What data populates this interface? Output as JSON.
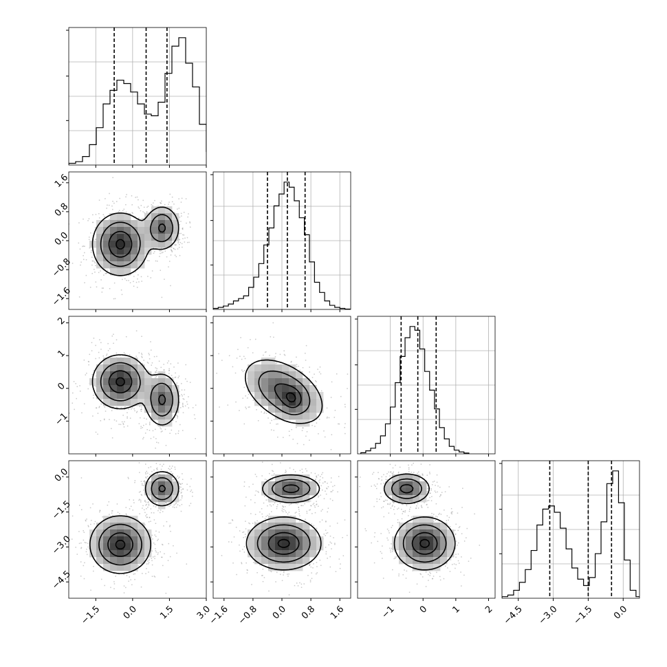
{
  "chart_data": {
    "type": "corner",
    "n_params": 4,
    "grid": true,
    "params": [
      {
        "range": [
          -2.6,
          3.0
        ],
        "ticks": [
          -1.5,
          0.0,
          1.5,
          3.0
        ],
        "tick_labels": [
          "−1.5",
          "0.0",
          "1.5",
          "3.0"
        ],
        "quantiles": [
          -0.75,
          0.55,
          1.4
        ],
        "histogram": {
          "bin_start": -2.6,
          "bin_width": 0.28,
          "counts": [
            0.5,
            1.0,
            2.5,
            6.0,
            11.0,
            18.0,
            22.0,
            25.0,
            24.0,
            21.5,
            18.0,
            15.0,
            14.5,
            18.5,
            27.0,
            35.0,
            37.5,
            30.0,
            23.0,
            12.0,
            4.0,
            1.0,
            0.3
          ]
        }
      },
      {
        "range": [
          -1.9,
          1.9
        ],
        "ticks": [
          -1.6,
          -0.8,
          0.0,
          0.8,
          1.6
        ],
        "tick_labels": [
          "−1.6",
          "−0.8",
          "0.0",
          "0.8",
          "1.6"
        ],
        "quantiles": [
          -0.4,
          0.15,
          0.64
        ],
        "histogram": {
          "bin_start": -1.9,
          "bin_width": 0.14,
          "counts": [
            0.3,
            0.6,
            1.0,
            1.6,
            2.5,
            3.2,
            4.0,
            6.5,
            9.5,
            13.5,
            19.0,
            24.0,
            30.5,
            34.0,
            37.5,
            36.0,
            32.0,
            27.0,
            22.0,
            14.0,
            8.0,
            5.0,
            2.5,
            1.2,
            0.6,
            0.3,
            0.1
          ]
        }
      },
      {
        "range": [
          -2.0,
          2.2
        ],
        "ticks": [
          -1,
          0,
          1,
          2
        ],
        "tick_labels": [
          "−1",
          "0",
          "1",
          "2"
        ],
        "quantiles": [
          -0.67,
          -0.16,
          0.4
        ],
        "histogram": {
          "bin_start": -1.9,
          "bin_width": 0.15,
          "counts": [
            0.3,
            0.8,
            1.5,
            2.8,
            4.8,
            8.0,
            12.5,
            19.0,
            26.0,
            31.0,
            34.0,
            33.0,
            28.0,
            22.0,
            17.0,
            12.0,
            7.0,
            4.0,
            2.0,
            1.0,
            0.5,
            0.2
          ]
        }
      },
      {
        "range": [
          -5.2,
          0.7
        ],
        "ticks": [
          -4.5,
          -3.0,
          -1.5,
          0.0
        ],
        "tick_labels": [
          "−4.5",
          "−3.0",
          "−1.5",
          "0.0"
        ],
        "quantiles": [
          -3.15,
          -1.5,
          -0.5
        ],
        "histogram": {
          "bin_start": -5.2,
          "bin_width": 0.25,
          "counts": [
            0.5,
            1.0,
            2.5,
            5.0,
            9.0,
            15.0,
            23.0,
            28.0,
            29.0,
            27.0,
            22.0,
            15.5,
            9.5,
            6.0,
            4.0,
            6.5,
            14.0,
            24.0,
            36.0,
            40.0,
            30.0,
            12.0,
            2.5,
            0.5
          ]
        }
      }
    ],
    "pairs": [
      {
        "row": 1,
        "col": 0,
        "peaks": [
          {
            "x": -0.5,
            "y": -0.1,
            "sx": 0.55,
            "sy": 0.42,
            "weight": 0.6
          },
          {
            "x": 1.2,
            "y": 0.35,
            "sx": 0.35,
            "sy": 0.3,
            "weight": 0.45
          }
        ],
        "contour_levels": [
          0.12,
          0.35,
          0.7,
          0.95
        ]
      },
      {
        "row": 2,
        "col": 0,
        "peaks": [
          {
            "x": -0.5,
            "y": 0.2,
            "sx": 0.55,
            "sy": 0.4,
            "weight": 0.6
          },
          {
            "x": 1.2,
            "y": -0.35,
            "sx": 0.35,
            "sy": 0.4,
            "weight": 0.45
          }
        ],
        "contour_levels": [
          0.12,
          0.35,
          0.7,
          0.95
        ]
      },
      {
        "row": 3,
        "col": 0,
        "peaks": [
          {
            "x": -0.5,
            "y": -2.9,
            "sx": 0.6,
            "sy": 0.6,
            "weight": 0.6
          },
          {
            "x": 1.2,
            "y": -0.5,
            "sx": 0.35,
            "sy": 0.38,
            "weight": 0.45
          }
        ],
        "contour_levels": [
          0.12,
          0.35,
          0.7,
          0.95
        ]
      },
      {
        "row": 2,
        "col": 1,
        "peaks": [
          {
            "x": 0.05,
            "y": -0.1,
            "sx": 0.55,
            "sy": 0.5,
            "rho": -0.45,
            "weight": 0.45
          },
          {
            "x": 0.3,
            "y": -0.35,
            "sx": 0.2,
            "sy": 0.25,
            "weight": 0.2
          }
        ],
        "contour_levels": [
          0.12,
          0.35,
          0.7,
          0.95
        ]
      },
      {
        "row": 3,
        "col": 1,
        "peaks": [
          {
            "x": 0.05,
            "y": -2.85,
            "sx": 0.5,
            "sy": 0.55,
            "weight": 0.55
          },
          {
            "x": 0.25,
            "y": -0.5,
            "sx": 0.4,
            "sy": 0.3,
            "weight": 0.45
          }
        ],
        "contour_levels": [
          0.12,
          0.35,
          0.7,
          0.95
        ]
      },
      {
        "row": 3,
        "col": 2,
        "peaks": [
          {
            "x": 0.05,
            "y": -2.85,
            "sx": 0.45,
            "sy": 0.55,
            "weight": 0.55
          },
          {
            "x": -0.5,
            "y": -0.5,
            "sx": 0.35,
            "sy": 0.32,
            "weight": 0.45
          }
        ],
        "contour_levels": [
          0.12,
          0.35,
          0.7,
          0.95
        ]
      }
    ]
  }
}
